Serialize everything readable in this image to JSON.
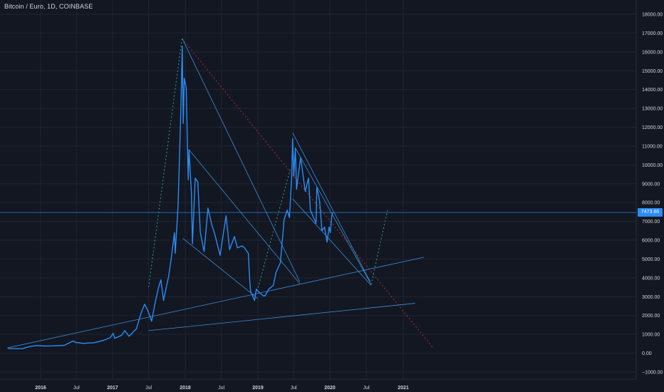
{
  "header": {
    "title": "Bitcoin / Euro, 1D, COINBASE"
  },
  "colors": {
    "background": "#131722",
    "grid": "#1f2433",
    "price_line": "#2a8cf6",
    "trendline": "#3b8fd9",
    "projection_green": "#26a69a",
    "resistance_red": "#b02b3a",
    "axis_text": "#d1d4dc",
    "price_tag": "#2a8cf6"
  },
  "chart_data": {
    "type": "line",
    "title": "Bitcoin / Euro, 1D, COINBASE",
    "xlabel": "",
    "ylabel": "",
    "x_ticks": [
      "2016",
      "Jul",
      "2017",
      "Jul",
      "2018",
      "Jul",
      "2019",
      "Jul",
      "2020",
      "Jul",
      "2021"
    ],
    "y_ticks": [
      "18000.00",
      "17000.00",
      "16000.00",
      "15000.00",
      "14000.00",
      "13000.00",
      "12000.00",
      "11000.00",
      "10000.00",
      "9000.00",
      "8000.00",
      "7000.00",
      "6000.00",
      "5000.00",
      "4000.00",
      "3000.00",
      "2000.00",
      "1000.00",
      "0.00",
      "−1000.00"
    ],
    "ylim": [
      -1000,
      18500
    ],
    "xlim": [
      "2015-07-15",
      "2021-08-20"
    ],
    "grid": true,
    "last_price": "7473.66",
    "last_price_value": 7473.66,
    "series": [
      {
        "values": [
          [
            "2015-07-20",
            240
          ],
          [
            "2015-10-01",
            245
          ],
          [
            "2015-11-05",
            350
          ],
          [
            "2015-12-15",
            410
          ],
          [
            "2016-01-15",
            380
          ],
          [
            "2016-03-01",
            390
          ],
          [
            "2016-05-01",
            420
          ],
          [
            "2016-06-15",
            650
          ],
          [
            "2016-06-25",
            580
          ],
          [
            "2016-08-05",
            520
          ],
          [
            "2016-10-01",
            560
          ],
          [
            "2016-11-15",
            680
          ],
          [
            "2016-12-20",
            820
          ],
          [
            "2017-01-04",
            1050
          ],
          [
            "2017-01-12",
            790
          ],
          [
            "2017-02-15",
            950
          ],
          [
            "2017-03-03",
            1200
          ],
          [
            "2017-03-25",
            900
          ],
          [
            "2017-05-01",
            1300
          ],
          [
            "2017-05-25",
            2150
          ],
          [
            "2017-06-11",
            2600
          ],
          [
            "2017-06-28",
            2250
          ],
          [
            "2017-07-16",
            1700
          ],
          [
            "2017-08-05",
            2800
          ],
          [
            "2017-08-20",
            3500
          ],
          [
            "2017-09-01",
            3900
          ],
          [
            "2017-09-14",
            2800
          ],
          [
            "2017-10-10",
            4100
          ],
          [
            "2017-10-22",
            5000
          ],
          [
            "2017-11-08",
            6400
          ],
          [
            "2017-11-12",
            5300
          ],
          [
            "2017-11-26",
            7800
          ],
          [
            "2017-12-07",
            11800
          ],
          [
            "2017-12-10",
            13000
          ],
          [
            "2017-12-17",
            16300
          ],
          [
            "2017-12-22",
            12200
          ],
          [
            "2017-12-27",
            14600
          ],
          [
            "2018-01-06",
            14100
          ],
          [
            "2018-01-11",
            11600
          ],
          [
            "2018-01-16",
            9200
          ],
          [
            "2018-01-20",
            10800
          ],
          [
            "2018-02-01",
            8500
          ],
          [
            "2018-02-06",
            5800
          ],
          [
            "2018-02-20",
            9300
          ],
          [
            "2018-03-05",
            9100
          ],
          [
            "2018-03-18",
            6400
          ],
          [
            "2018-04-06",
            5400
          ],
          [
            "2018-04-25",
            7700
          ],
          [
            "2018-05-15",
            6800
          ],
          [
            "2018-05-30",
            6300
          ],
          [
            "2018-06-25",
            5200
          ],
          [
            "2018-07-25",
            7300
          ],
          [
            "2018-08-12",
            5500
          ],
          [
            "2018-09-05",
            6200
          ],
          [
            "2018-09-20",
            5600
          ],
          [
            "2018-10-15",
            5700
          ],
          [
            "2018-10-25",
            5600
          ],
          [
            "2018-11-14",
            5300
          ],
          [
            "2018-11-20",
            4000
          ],
          [
            "2018-11-25",
            3300
          ],
          [
            "2018-12-15",
            2800
          ],
          [
            "2018-12-24",
            3400
          ],
          [
            "2019-01-05",
            3250
          ],
          [
            "2019-01-28",
            3050
          ],
          [
            "2019-02-07",
            3050
          ],
          [
            "2019-02-25",
            3400
          ],
          [
            "2019-03-20",
            3600
          ],
          [
            "2019-04-03",
            4300
          ],
          [
            "2019-04-25",
            4800
          ],
          [
            "2019-05-14",
            7100
          ],
          [
            "2019-05-30",
            7600
          ],
          [
            "2019-06-10",
            7200
          ],
          [
            "2019-06-22",
            9500
          ],
          [
            "2019-06-26",
            11400
          ],
          [
            "2019-07-02",
            9400
          ],
          [
            "2019-07-10",
            10900
          ],
          [
            "2019-07-16",
            8700
          ],
          [
            "2019-08-06",
            10400
          ],
          [
            "2019-08-29",
            8600
          ],
          [
            "2019-09-15",
            9300
          ],
          [
            "2019-09-24",
            7600
          ],
          [
            "2019-10-23",
            6900
          ],
          [
            "2019-10-27",
            8800
          ],
          [
            "2019-11-10",
            8100
          ],
          [
            "2019-11-22",
            6500
          ],
          [
            "2019-12-05",
            6700
          ],
          [
            "2019-12-18",
            5900
          ],
          [
            "2019-12-28",
            6700
          ],
          [
            "2020-01-03",
            6400
          ],
          [
            "2020-01-10",
            7200
          ],
          [
            "2020-01-14",
            7473.66
          ]
        ]
      }
    ],
    "trendlines": [
      {
        "points": [
          [
            "2017-12-17",
            16700
          ],
          [
            "2019-08-01",
            3800
          ]
        ]
      },
      {
        "points": [
          [
            "2018-01-20",
            10800
          ],
          [
            "2019-08-01",
            3700
          ]
        ]
      },
      {
        "points": [
          [
            "2017-12-20",
            6100
          ],
          [
            "2019-01-01",
            2900
          ]
        ]
      },
      {
        "points": [
          [
            "2019-06-26",
            11700
          ],
          [
            "2020-07-20",
            3800
          ]
        ]
      },
      {
        "points": [
          [
            "2019-06-26",
            8200
          ],
          [
            "2020-07-25",
            3600
          ]
        ]
      },
      {
        "points": [
          [
            "2019-07-10",
            10900
          ],
          [
            "2020-07-25",
            3650
          ]
        ]
      },
      {
        "points": [
          [
            "2015-07-15",
            280
          ],
          [
            "2021-04-15",
            5100
          ]
        ]
      },
      {
        "points": [
          [
            "2017-07-01",
            1200
          ],
          [
            "2021-03-01",
            2650
          ]
        ]
      }
    ],
    "projections": [
      {
        "points": [
          [
            "2017-07-01",
            3500
          ],
          [
            "2017-12-17",
            16800
          ]
        ]
      },
      {
        "points": [
          [
            "2018-12-28",
            3300
          ],
          [
            "2019-06-15",
            9800
          ]
        ]
      },
      {
        "points": [
          [
            "2020-07-25",
            3650
          ],
          [
            "2020-10-15",
            7600
          ]
        ]
      }
    ],
    "resistance": [
      {
        "points": [
          [
            "2017-12-17",
            16700
          ],
          [
            "2021-06-01",
            250
          ]
        ]
      }
    ]
  }
}
